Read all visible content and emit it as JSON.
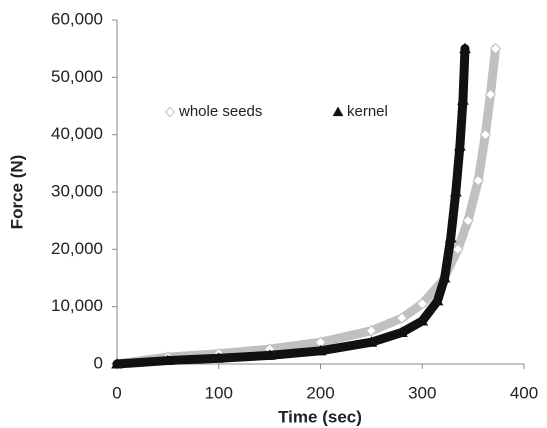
{
  "chart_data": {
    "type": "scatter",
    "xlabel": "Time (sec)",
    "ylabel": "Force (N)",
    "xlim": [
      0,
      400
    ],
    "xticks": [
      0,
      100,
      200,
      300,
      400
    ],
    "ylim": [
      0,
      60000
    ],
    "yticks": [
      0,
      {
        "value": 10000,
        "label": "10,000"
      },
      {
        "value": 20000,
        "label": "20,000"
      },
      {
        "value": 30000,
        "label": "30,000"
      },
      {
        "value": 40000,
        "label": "40,000"
      },
      {
        "value": 50000,
        "label": "50,000"
      },
      {
        "value": 60000,
        "label": "60,000"
      }
    ],
    "grid": false,
    "series": [
      {
        "name": "whole seeds",
        "color": "#c0c0c0",
        "marker": "diamond",
        "x": [
          0,
          50,
          100,
          150,
          200,
          250,
          280,
          300,
          320,
          335,
          345,
          355,
          362,
          367,
          372
        ],
        "values": [
          0,
          1200,
          1800,
          2600,
          3800,
          5800,
          8000,
          10500,
          14500,
          20000,
          25000,
          32000,
          40000,
          47000,
          55000
        ]
      },
      {
        "name": "kernel",
        "color": "#111111",
        "marker": "triangle",
        "x": [
          0,
          50,
          100,
          150,
          200,
          250,
          280,
          300,
          315,
          322,
          328,
          333,
          337,
          340,
          342
        ],
        "values": [
          0,
          600,
          1000,
          1500,
          2300,
          3800,
          5500,
          7500,
          11000,
          15000,
          22000,
          30000,
          38000,
          46000,
          55000
        ]
      }
    ]
  }
}
